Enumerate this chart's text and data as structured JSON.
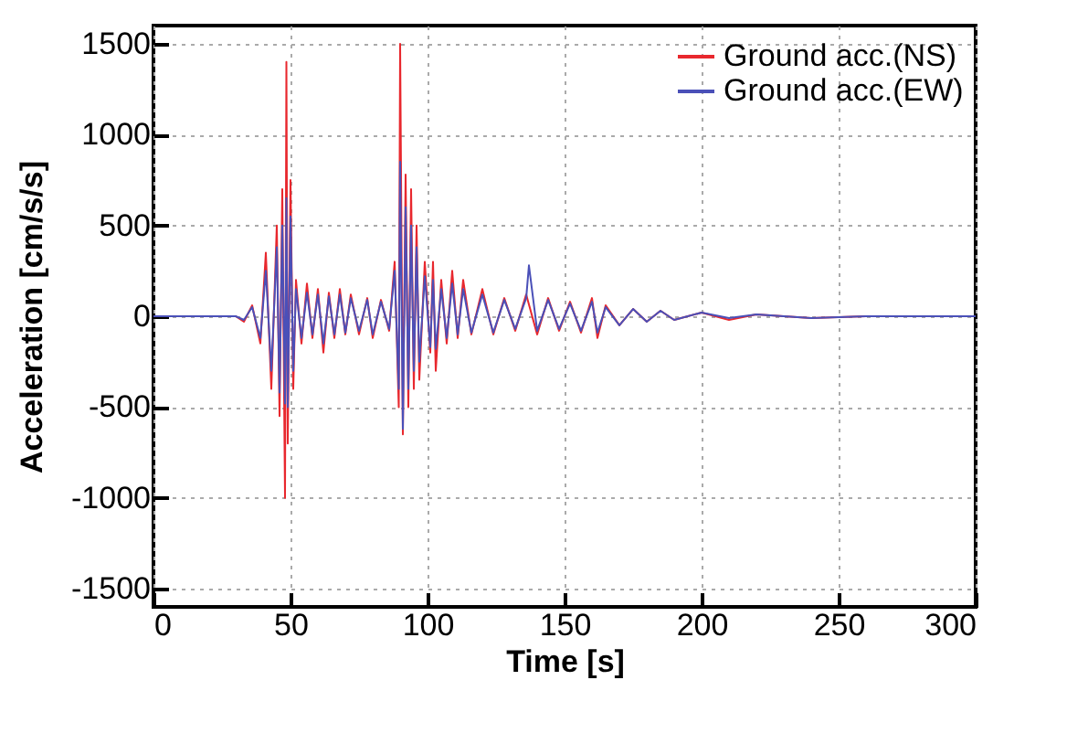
{
  "chart_data": {
    "type": "line",
    "xlabel": "Time [s]",
    "ylabel": "Acceleration [cm/s/s]",
    "xlim": [
      0,
      300
    ],
    "xticks": [
      0,
      50,
      100,
      150,
      200,
      250,
      300
    ],
    "ylim": [
      -1600,
      1600
    ],
    "yticks": [
      -1500,
      -1000,
      -500,
      0,
      500,
      1000,
      1500
    ],
    "grid": true,
    "legend": "top right",
    "line_style": "solid",
    "series": [
      {
        "name": "Ground acc.(NS)",
        "color": "#e8282e",
        "x": [
          0,
          20,
          30,
          33,
          36,
          39,
          41,
          43,
          45,
          46,
          47,
          48,
          48.5,
          49,
          50,
          51,
          52,
          54,
          56,
          58,
          60,
          62,
          64,
          66,
          68,
          70,
          72,
          75,
          78,
          80,
          83,
          86,
          88,
          89.5,
          90,
          91,
          92,
          93,
          94,
          95,
          96,
          97,
          99,
          101,
          102,
          103,
          105,
          107,
          109,
          111,
          113,
          116,
          120,
          124,
          128,
          132,
          136,
          140,
          144,
          148,
          152,
          156,
          160,
          162,
          165,
          170,
          175,
          180,
          185,
          190,
          200,
          210,
          220,
          240,
          260
        ],
        "values": [
          0,
          0,
          0,
          -30,
          60,
          -150,
          350,
          -400,
          500,
          -550,
          700,
          -1000,
          1400,
          -700,
          750,
          -400,
          200,
          -150,
          180,
          -120,
          150,
          -200,
          130,
          -120,
          150,
          -100,
          120,
          -100,
          100,
          -120,
          90,
          -80,
          300,
          -500,
          1500,
          -650,
          780,
          -500,
          700,
          -400,
          500,
          -350,
          300,
          -200,
          300,
          -300,
          200,
          -150,
          250,
          -120,
          200,
          -100,
          150,
          -100,
          100,
          -80,
          120,
          -100,
          100,
          -80,
          80,
          -90,
          100,
          -120,
          60,
          -50,
          40,
          -30,
          30,
          -20,
          20,
          -20,
          10,
          -10,
          0
        ]
      },
      {
        "name": "Ground acc.(EW)",
        "color": "#4a50b8",
        "x": [
          0,
          20,
          30,
          33,
          36,
          39,
          41,
          43,
          45,
          46,
          47,
          48,
          48.5,
          49,
          50,
          51,
          52,
          54,
          56,
          58,
          60,
          62,
          64,
          66,
          68,
          70,
          72,
          75,
          78,
          80,
          83,
          86,
          88,
          89.5,
          90,
          91,
          92,
          93,
          94,
          95,
          96,
          97,
          99,
          101,
          102,
          103,
          105,
          107,
          109,
          111,
          113,
          116,
          120,
          124,
          128,
          132,
          136,
          137,
          140,
          144,
          148,
          152,
          156,
          160,
          162,
          165,
          170,
          175,
          180,
          185,
          190,
          200,
          210,
          220,
          240,
          260,
          280,
          300
        ],
        "values": [
          0,
          0,
          0,
          -20,
          50,
          -120,
          250,
          -300,
          380,
          -420,
          500,
          -480,
          650,
          -500,
          550,
          -300,
          150,
          -120,
          130,
          -100,
          120,
          -150,
          110,
          -100,
          120,
          -90,
          100,
          -80,
          90,
          -100,
          80,
          -70,
          250,
          -400,
          850,
          -620,
          600,
          -400,
          500,
          -300,
          380,
          -250,
          220,
          -170,
          200,
          -180,
          150,
          -120,
          180,
          -100,
          150,
          -90,
          120,
          -90,
          90,
          -70,
          100,
          280,
          -80,
          90,
          -70,
          70,
          -80,
          80,
          -90,
          50,
          -50,
          40,
          -30,
          30,
          -20,
          20,
          -10,
          10,
          -10,
          0,
          0,
          0
        ]
      }
    ]
  }
}
